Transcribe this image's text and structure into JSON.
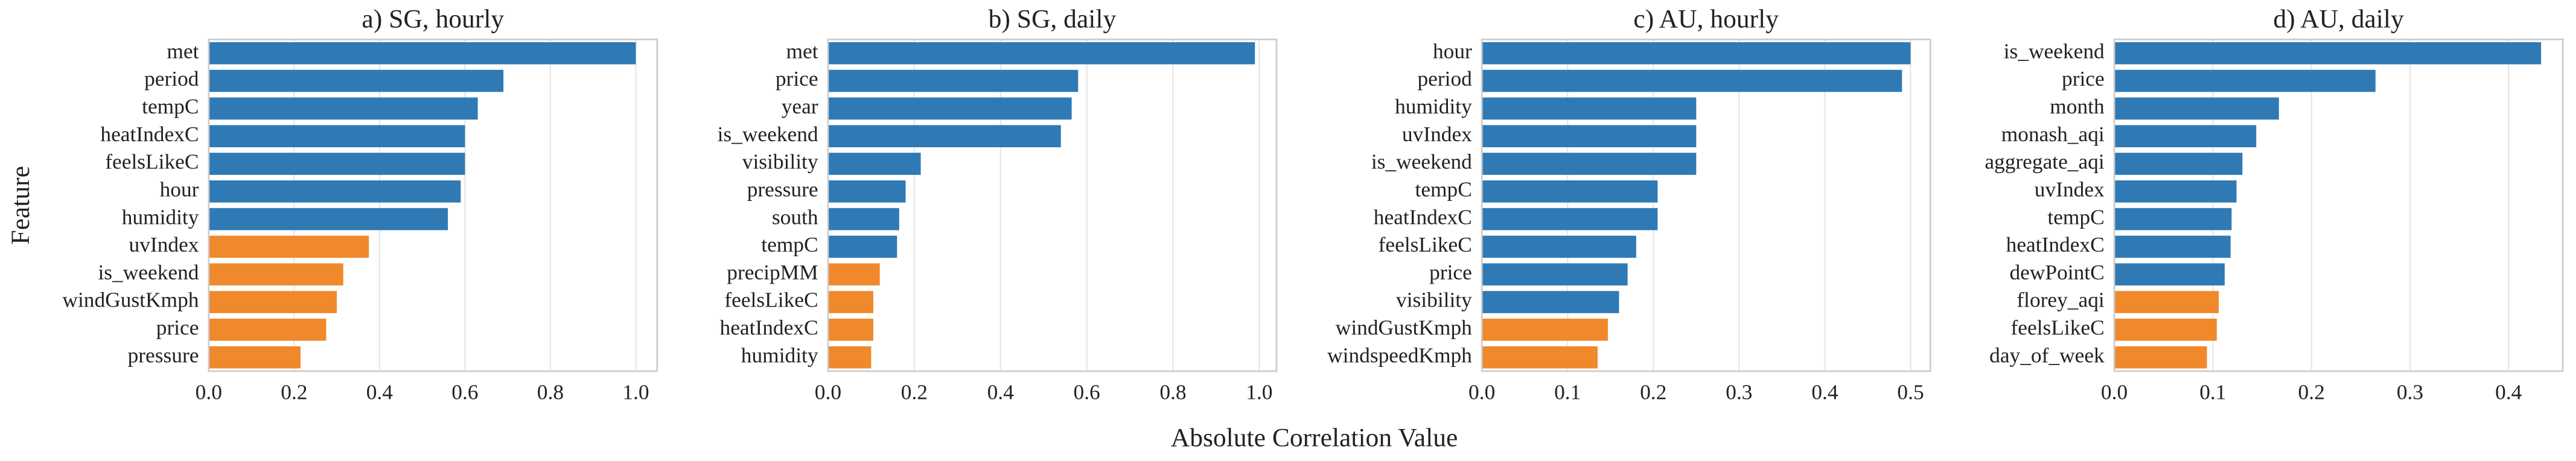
{
  "xlabel": "Absolute Correlation Value",
  "ylabel": "Feature",
  "chart_data": [
    {
      "type": "bar",
      "orientation": "horizontal",
      "title": "a) SG, hourly",
      "categories": [
        "met",
        "period",
        "tempC",
        "heatIndexC",
        "feelsLikeC",
        "hour",
        "humidity",
        "uvIndex",
        "is_weekend",
        "windGustKmph",
        "price",
        "pressure"
      ],
      "values": [
        1.0,
        0.69,
        0.63,
        0.6,
        0.6,
        0.59,
        0.56,
        0.375,
        0.315,
        0.3,
        0.275,
        0.215
      ],
      "colors": [
        "#2f7ab5",
        "#2f7ab5",
        "#2f7ab5",
        "#2f7ab5",
        "#2f7ab5",
        "#2f7ab5",
        "#2f7ab5",
        "#f0892c",
        "#f0892c",
        "#f0892c",
        "#f0892c",
        "#f0892c"
      ],
      "xlim": [
        0,
        1.05
      ],
      "xticks": [
        {
          "value": 0,
          "label": "0.0"
        },
        0.2,
        0.4,
        0.6,
        0.8,
        {
          "value": 1,
          "label": "1.0"
        }
      ],
      "grid": true
    },
    {
      "type": "bar",
      "orientation": "horizontal",
      "title": "b) SG, daily",
      "categories": [
        "met",
        "price",
        "year",
        "is_weekend",
        "visibility",
        "pressure",
        "south",
        "tempC",
        "precipMM",
        "feelsLikeC",
        "heatIndexC",
        "humidity"
      ],
      "values": [
        0.99,
        0.58,
        0.565,
        0.54,
        0.215,
        0.18,
        0.165,
        0.16,
        0.12,
        0.105,
        0.105,
        0.1
      ],
      "colors": [
        "#2f7ab5",
        "#2f7ab5",
        "#2f7ab5",
        "#2f7ab5",
        "#2f7ab5",
        "#2f7ab5",
        "#2f7ab5",
        "#2f7ab5",
        "#f0892c",
        "#f0892c",
        "#f0892c",
        "#f0892c"
      ],
      "xlim": [
        0,
        1.04
      ],
      "xticks": [
        {
          "value": 0,
          "label": "0.0"
        },
        0.2,
        0.4,
        0.6,
        0.8,
        {
          "value": 1,
          "label": "1.0"
        }
      ],
      "grid": true
    },
    {
      "type": "bar",
      "orientation": "horizontal",
      "title": "c) AU, hourly",
      "categories": [
        "hour",
        "period",
        "humidity",
        "uvIndex",
        "is_weekend",
        "tempC",
        "heatIndexC",
        "feelsLikeC",
        "price",
        "visibility",
        "windGustKmph",
        "windspeedKmph"
      ],
      "values": [
        0.5,
        0.49,
        0.25,
        0.25,
        0.25,
        0.205,
        0.205,
        0.18,
        0.17,
        0.16,
        0.147,
        0.135
      ],
      "colors": [
        "#2f7ab5",
        "#2f7ab5",
        "#2f7ab5",
        "#2f7ab5",
        "#2f7ab5",
        "#2f7ab5",
        "#2f7ab5",
        "#2f7ab5",
        "#2f7ab5",
        "#2f7ab5",
        "#f0892c",
        "#f0892c"
      ],
      "xlim": [
        0,
        0.523
      ],
      "xticks": [
        {
          "value": 0,
          "label": "0.0"
        },
        0.1,
        0.2,
        0.3,
        0.4,
        0.5
      ],
      "grid": true
    },
    {
      "type": "bar",
      "orientation": "horizontal",
      "title": "d) AU, daily",
      "categories": [
        "is_weekend",
        "price",
        "month",
        "monash_aqi",
        "aggregate_aqi",
        "uvIndex",
        "tempC",
        "heatIndexC",
        "dewPointC",
        "florey_aqi",
        "feelsLikeC",
        "day_of_week"
      ],
      "values": [
        0.433,
        0.265,
        0.167,
        0.144,
        0.13,
        0.124,
        0.119,
        0.118,
        0.112,
        0.106,
        0.104,
        0.094
      ],
      "colors": [
        "#2f7ab5",
        "#2f7ab5",
        "#2f7ab5",
        "#2f7ab5",
        "#2f7ab5",
        "#2f7ab5",
        "#2f7ab5",
        "#2f7ab5",
        "#2f7ab5",
        "#f0892c",
        "#f0892c",
        "#f0892c"
      ],
      "xlim": [
        0,
        0.455
      ],
      "xticks": [
        {
          "value": 0,
          "label": "0.0"
        },
        0.1,
        0.2,
        0.3,
        0.4
      ],
      "grid": true
    }
  ]
}
